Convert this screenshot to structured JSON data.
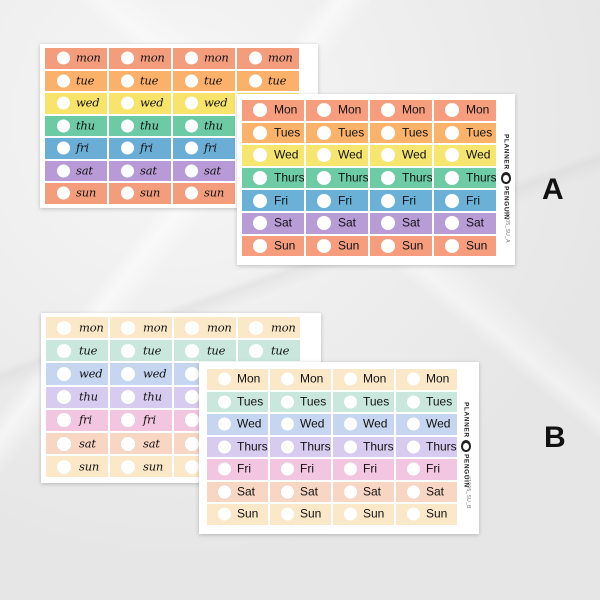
{
  "variants": [
    {
      "letter": "A",
      "script_sheet": {
        "labels": [
          "mon",
          "tue",
          "wed",
          "thu",
          "fri",
          "sat",
          "sun"
        ],
        "colors": [
          "#f39d7d",
          "#fcb16a",
          "#f8e36b",
          "#6ccaa5",
          "#6aaed6",
          "#b79ad6",
          "#f39d7d"
        ]
      },
      "print_sheet": {
        "labels": [
          "Mon",
          "Tues",
          "Wed",
          "Thurs",
          "Fri",
          "Sat",
          "Sun"
        ],
        "colors": [
          "#f59d7c",
          "#fbb36c",
          "#f6e56f",
          "#6dcba5",
          "#6ab0d7",
          "#b89cd6",
          "#f59d7c"
        ]
      },
      "brand": {
        "text_top": "PLANNER",
        "text_bottom": "PENGUIN"
      },
      "sku": "#1005_SU_A"
    },
    {
      "letter": "B",
      "script_sheet": {
        "labels": [
          "mon",
          "tue",
          "wed",
          "thu",
          "fri",
          "sat",
          "sun"
        ],
        "colors": [
          "#fbe8c8",
          "#c9e7dd",
          "#c6d5f0",
          "#d8cbf0",
          "#f2c6e0",
          "#f8d6c4",
          "#fbe8c8"
        ]
      },
      "print_sheet": {
        "labels": [
          "Mon",
          "Tues",
          "Wed",
          "Thurs",
          "Fri",
          "Sat",
          "Sun"
        ],
        "colors": [
          "#fbe8c8",
          "#c9e7dd",
          "#c6d5f0",
          "#d8cbf0",
          "#f2c6e0",
          "#f8d6c4",
          "#fbe8c8"
        ]
      },
      "brand": {
        "text_top": "PLANNER",
        "text_bottom": "PENGUIN"
      },
      "sku": "#1005_SU_B"
    }
  ]
}
